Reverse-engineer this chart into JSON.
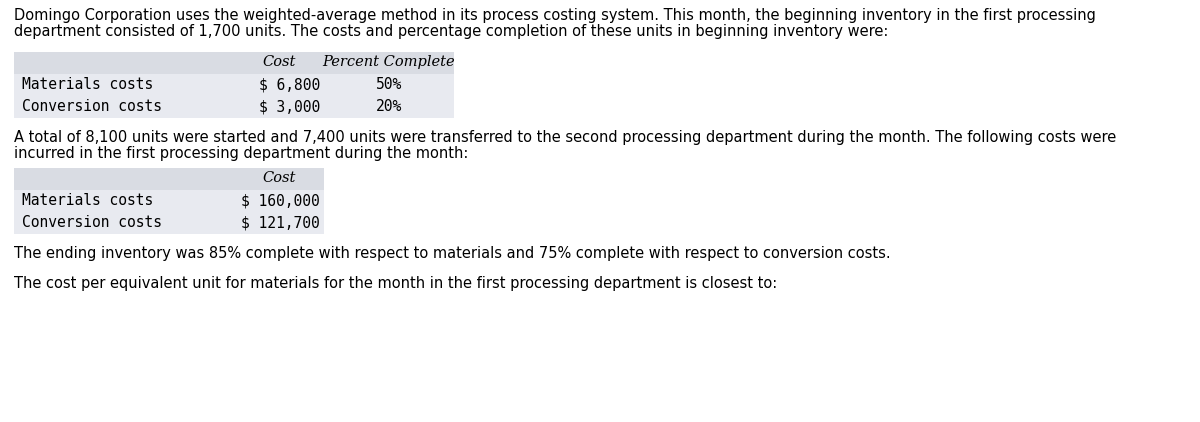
{
  "bg_color": "#ffffff",
  "text_color": "#000000",
  "table_header_bg": "#d9dce3",
  "table_row_bg": "#e8eaf0",
  "para1_line1": "Domingo Corporation uses the weighted-average method in its process costing system. This month, the beginning inventory in the first processing",
  "para1_line2": "department consisted of 1,700 units. The costs and percentage completion of these units in beginning inventory were:",
  "table1": {
    "headers": [
      "",
      "Cost",
      "Percent Complete"
    ],
    "rows": [
      [
        "Materials costs",
        "$ 6,800",
        "50%"
      ],
      [
        "Conversion costs",
        "$ 3,000",
        "20%"
      ]
    ]
  },
  "para2_line1": "A total of 8,100 units were started and 7,400 units were transferred to the second processing department during the month. The following costs were",
  "para2_line2": "incurred in the first processing department during the month:",
  "table2": {
    "headers": [
      "",
      "Cost"
    ],
    "rows": [
      [
        "Materials costs",
        "$ 160,000"
      ],
      [
        "Conversion costs",
        "$ 121,700"
      ]
    ]
  },
  "para3": "The ending inventory was 85% complete with respect to materials and 75% complete with respect to conversion costs.",
  "para4": "The cost per equivalent unit for materials for the month in the first processing department is closest to:",
  "font_size_para": 10.5,
  "font_size_table": 10.5
}
